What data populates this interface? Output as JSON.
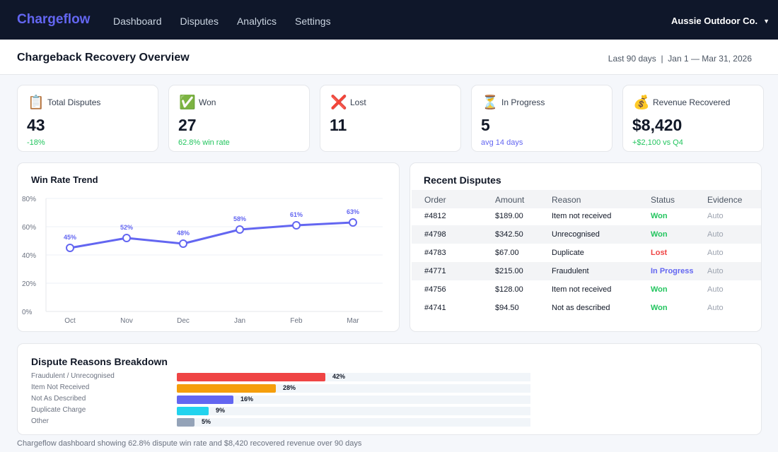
{
  "nav": {
    "brand": "Chargeflow",
    "links": [
      "Dashboard",
      "Disputes",
      "Analytics",
      "Settings"
    ],
    "account": "Aussie Outdoor Co."
  },
  "header": {
    "title": "Chargeback Recovery Overview",
    "date_range": "Last 90 days  |  Jan 1 — Mar 31, 2026"
  },
  "kpis": [
    {
      "icon": "clipboard-icon",
      "glyph": "📋",
      "label": "Total Disputes",
      "value": "43",
      "sub": "-18%",
      "sub_color": "#22c55e"
    },
    {
      "icon": "check-icon",
      "glyph": "✅",
      "label": "Won",
      "value": "27",
      "sub": "62.8% win rate",
      "sub_color": "#22c55e"
    },
    {
      "icon": "cross-icon",
      "glyph": "❌",
      "label": "Lost",
      "value": "11",
      "sub": "",
      "sub_color": "#22c55e"
    },
    {
      "icon": "hourglass-icon",
      "glyph": "⏳",
      "label": "In Progress",
      "value": "5",
      "sub": "avg 14 days",
      "sub_color": "#6366f1"
    },
    {
      "icon": "money-bag-icon",
      "glyph": "💰",
      "label": "Revenue Recovered",
      "value": "$8,420",
      "sub": "+$2,100 vs Q4",
      "sub_color": "#22c55e"
    }
  ],
  "chart_data": {
    "type": "line",
    "title": "Win Rate Trend",
    "categories": [
      "Oct",
      "Nov",
      "Dec",
      "Jan",
      "Feb",
      "Mar"
    ],
    "series": [
      {
        "values": [
          45,
          52,
          48,
          58,
          61,
          63
        ],
        "color": "#6366f1"
      }
    ],
    "data_labels": [
      "45%",
      "52%",
      "48%",
      "58%",
      "61%",
      "63%"
    ],
    "y_ticks": [
      "0%",
      "20%",
      "40%",
      "60%",
      "80%"
    ],
    "ylim": [
      0,
      80
    ],
    "grid": true
  },
  "table": {
    "title": "Recent Disputes",
    "columns": [
      "Order",
      "Amount",
      "Reason",
      "Status",
      "Evidence"
    ],
    "rows": [
      {
        "order": "#4812",
        "amount": "$189.00",
        "reason": "Item not received",
        "status": "Won",
        "status_color": "#22c55e",
        "evidence": "Auto"
      },
      {
        "order": "#4798",
        "amount": "$342.50",
        "reason": "Unrecognised",
        "status": "Won",
        "status_color": "#22c55e",
        "evidence": "Auto"
      },
      {
        "order": "#4783",
        "amount": "$67.00",
        "reason": "Duplicate",
        "status": "Lost",
        "status_color": "#ef4444",
        "evidence": "Auto"
      },
      {
        "order": "#4771",
        "amount": "$215.00",
        "reason": "Fraudulent",
        "status": "In Progress",
        "status_color": "#6366f1",
        "evidence": "Auto"
      },
      {
        "order": "#4756",
        "amount": "$128.00",
        "reason": "Item not received",
        "status": "Won",
        "status_color": "#22c55e",
        "evidence": "Auto"
      },
      {
        "order": "#4741",
        "amount": "$94.50",
        "reason": "Not as described",
        "status": "Won",
        "status_color": "#22c55e",
        "evidence": "Auto"
      }
    ]
  },
  "breakdown": {
    "title": "Dispute Reasons Breakdown",
    "items": [
      {
        "label": "Fraudulent / Unrecognised",
        "percent": 42,
        "pct_label": "42%",
        "color": "#ef4444"
      },
      {
        "label": "Item Not Received",
        "percent": 28,
        "pct_label": "28%",
        "color": "#f59e0b"
      },
      {
        "label": "Not As Described",
        "percent": 16,
        "pct_label": "16%",
        "color": "#6366f1"
      },
      {
        "label": "Duplicate Charge",
        "percent": 9,
        "pct_label": "9%",
        "color": "#22d3ee"
      },
      {
        "label": "Other",
        "percent": 5,
        "pct_label": "5%",
        "color": "#94a3b8"
      }
    ]
  },
  "footnote": "Chargeflow dashboard showing 62.8% dispute win rate and $8,420 recovered revenue over 90 days"
}
